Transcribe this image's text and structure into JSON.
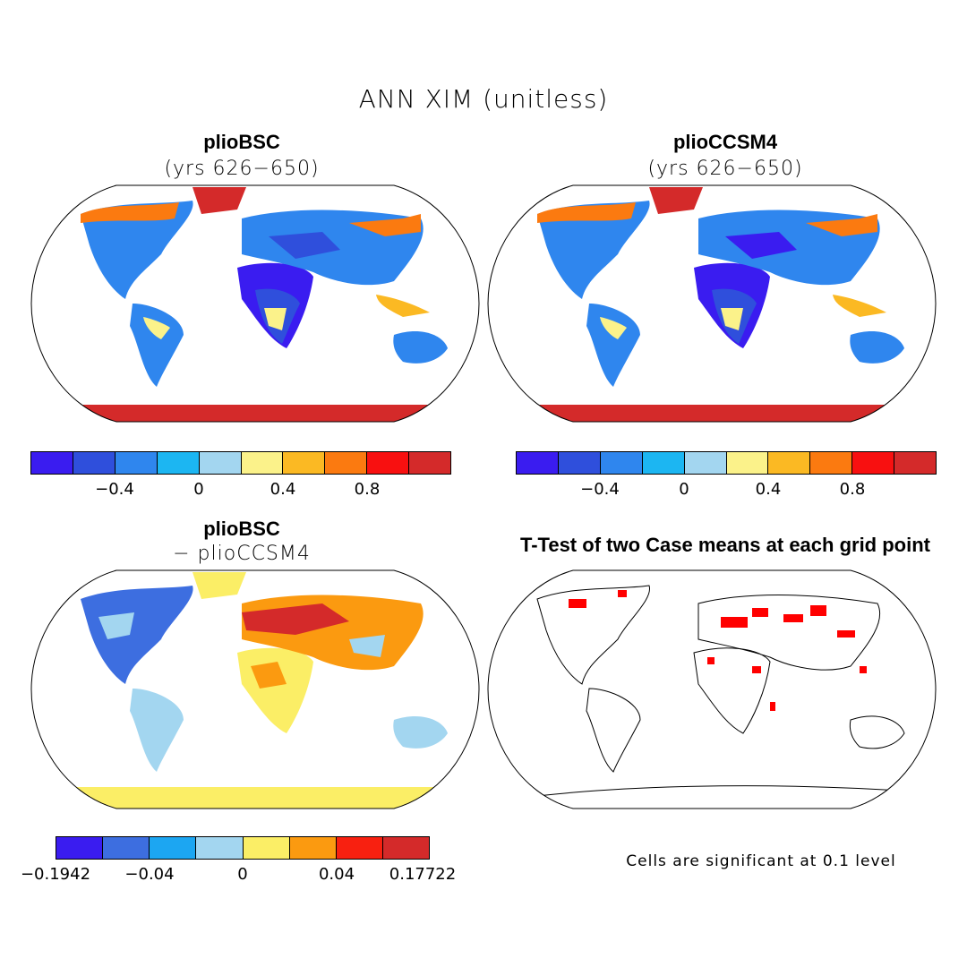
{
  "title": "ANN XIM (unitless)",
  "panels": [
    {
      "title": "plioBSC",
      "subtitle": "(yrs 626−650)"
    },
    {
      "title": "plioCCSM4",
      "subtitle": "(yrs 626−650)"
    },
    {
      "title": "plioBSC",
      "subtitle": "− plioCCSM4"
    },
    {
      "title": "T-Test of two Case means at each grid point",
      "subtitle": ""
    }
  ],
  "colorbar_top": {
    "colors": [
      "#3a1cf0",
      "#2f4fdc",
      "#2f86ee",
      "#1cb6f2",
      "#a3d6f0",
      "#fbf28a",
      "#fbb923",
      "#fb7a10",
      "#f81010",
      "#d42a2a"
    ],
    "tick_labels": [
      "−0.4",
      "0",
      "0.4",
      "0.8"
    ]
  },
  "colorbar_diff": {
    "colors": [
      "#3a1cf0",
      "#3d6ee0",
      "#1ca6f2",
      "#a3d6f0",
      "#fbee66",
      "#fb9a10",
      "#f82010",
      "#d42a2a"
    ],
    "tick_labels": [
      "−0.1942",
      "−0.04",
      "0",
      "0.04",
      "0.17722"
    ]
  },
  "significance_note": "Cells are significant at 0.1 level",
  "colors": {
    "land_sea_outline": "#000000",
    "significant_cells": "#ff0000",
    "antarctica_top": "#d42a2a",
    "antarctica_diff": "#fbee66"
  }
}
